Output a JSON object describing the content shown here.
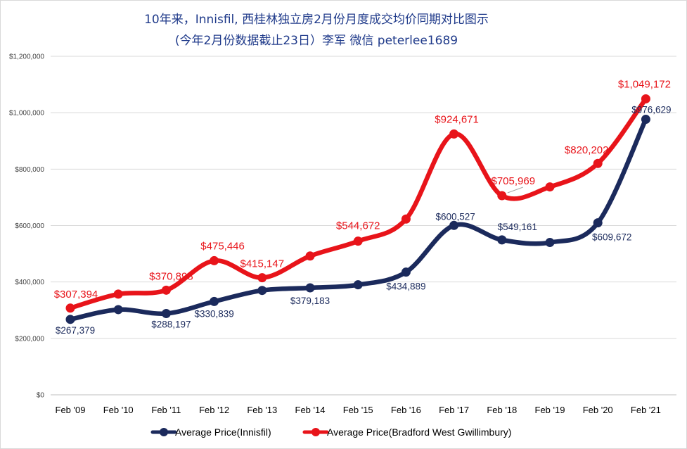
{
  "chart_data": {
    "type": "line",
    "title": "10年来，Innisfil, 西桂林独立房2月份月度成交均价同期对比图示",
    "subtitle": "(今年2月份数据截止23日）李军 微信 peterlee1689",
    "categories": [
      "Feb '09",
      "Feb '10",
      "Feb '11",
      "Feb '12",
      "Feb '13",
      "Feb '14",
      "Feb '15",
      "Feb '16",
      "Feb '17",
      "Feb '18",
      "Feb '19",
      "Feb '20",
      "Feb '21"
    ],
    "ylim": [
      0,
      1200000
    ],
    "yticks": [
      0,
      200000,
      400000,
      600000,
      800000,
      1000000,
      1200000
    ],
    "ytick_labels": [
      "$0",
      "$200,000",
      "$400,000",
      "$600,000",
      "$800,000",
      "$1,000,000",
      "$1,200,000"
    ],
    "grid": true,
    "legend_position": "bottom",
    "series": [
      {
        "name": "Average Price(Innisfil)",
        "color": "#1b2a5c",
        "values": [
          267379,
          302000,
          288197,
          330839,
          370000,
          379183,
          390000,
          434889,
          600527,
          549161,
          540000,
          609672,
          976629
        ],
        "data_labels": [
          {
            "index": 0,
            "text": "$267,379"
          },
          {
            "index": 2,
            "text": "$288,197"
          },
          {
            "index": 3,
            "text": "$330,839"
          },
          {
            "index": 5,
            "text": "$379,183"
          },
          {
            "index": 7,
            "text": "$434,889"
          },
          {
            "index": 8,
            "text": "$600,527"
          },
          {
            "index": 9,
            "text": "$549,161"
          },
          {
            "index": 11,
            "text": "$609,672"
          },
          {
            "index": 12,
            "text": "$976,629"
          }
        ]
      },
      {
        "name": "Average Price(Bradford West Gwillimbury)",
        "color": "#e8141a",
        "values": [
          307394,
          357000,
          370898,
          475446,
          415147,
          492000,
          544672,
          623000,
          924671,
          705969,
          737000,
          820202,
          1049172
        ],
        "data_labels": [
          {
            "index": 0,
            "text": "$307,394"
          },
          {
            "index": 2,
            "text": "$370,898"
          },
          {
            "index": 3,
            "text": "$475,446"
          },
          {
            "index": 4,
            "text": "$415,147"
          },
          {
            "index": 6,
            "text": "$544,672"
          },
          {
            "index": 8,
            "text": "$924,671"
          },
          {
            "index": 9,
            "text": "$705,969"
          },
          {
            "index": 11,
            "text": "$820,202"
          },
          {
            "index": 12,
            "text": "$1,049,172"
          }
        ]
      }
    ]
  }
}
